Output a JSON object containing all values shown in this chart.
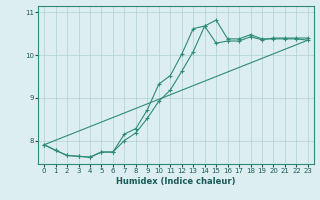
{
  "xlabel": "Humidex (Indice chaleur)",
  "background_color": "#dceef0",
  "line_color": "#2e8b74",
  "grid_color": "#b0d0d0",
  "xlim": [
    -0.5,
    23.5
  ],
  "ylim": [
    7.45,
    11.15
  ],
  "yticks": [
    8,
    9,
    10,
    11
  ],
  "xticks": [
    0,
    1,
    2,
    3,
    4,
    5,
    6,
    7,
    8,
    9,
    10,
    11,
    12,
    13,
    14,
    15,
    16,
    17,
    18,
    19,
    20,
    21,
    22,
    23
  ],
  "series1_x": [
    0,
    1,
    2,
    3,
    4,
    5,
    6,
    7,
    8,
    9,
    10,
    11,
    12,
    13,
    14,
    15,
    16,
    17,
    18,
    19,
    20,
    21,
    22,
    23
  ],
  "series1_y": [
    7.9,
    7.77,
    7.65,
    7.63,
    7.61,
    7.73,
    7.73,
    8.15,
    8.28,
    8.72,
    9.32,
    9.52,
    10.02,
    10.62,
    10.68,
    10.82,
    10.38,
    10.38,
    10.48,
    10.38,
    10.38,
    10.38,
    10.38,
    10.35
  ],
  "series2_x": [
    0,
    1,
    2,
    3,
    4,
    5,
    6,
    7,
    8,
    9,
    10,
    11,
    12,
    13,
    14,
    15,
    16,
    17,
    18,
    19,
    20,
    21,
    22,
    23
  ],
  "series2_y": [
    7.9,
    7.77,
    7.65,
    7.63,
    7.61,
    7.73,
    7.73,
    8.0,
    8.18,
    8.52,
    8.92,
    9.18,
    9.62,
    10.08,
    10.68,
    10.28,
    10.33,
    10.33,
    10.43,
    10.36,
    10.4,
    10.4,
    10.4,
    10.4
  ],
  "series3_x": [
    0,
    23
  ],
  "series3_y": [
    7.9,
    10.35
  ]
}
